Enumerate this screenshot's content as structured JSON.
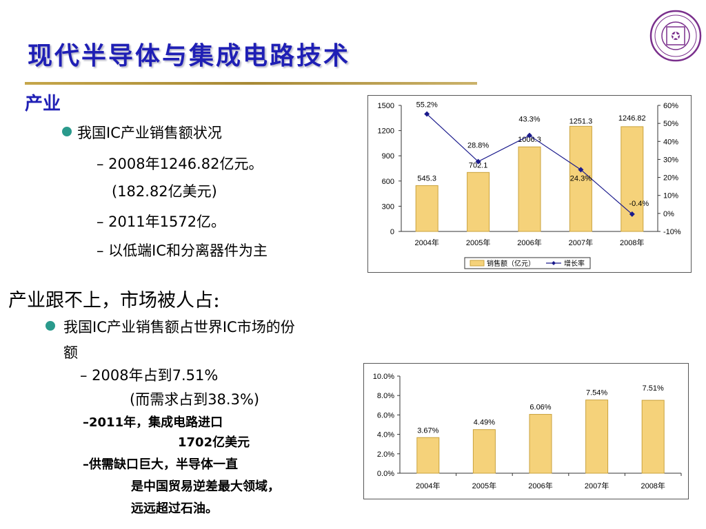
{
  "slide": {
    "title": "现代半导体与集成电路技术",
    "section": "产业",
    "bullet1": "我国IC产业销售额状况",
    "b1_sub1": "– 2008年1246.82亿元。",
    "b1_sub1b": "(182.82亿美元)",
    "b1_sub2": "– 2011年1572亿。",
    "b1_sub3": "– 以低端IC和分离器件为主",
    "heading2": "产业跟不上，市场被人占",
    "heading2_colon": "：",
    "bullet2_line1": "我国IC产业销售额占世界IC市场的份",
    "bullet2_line2": "额",
    "b2_sub1": "– 2008年占到7.51%",
    "b2_sub1b": "(而需求占到38.3%)",
    "b2_sub2": "–2011年，集成电路进口",
    "b2_sub2b": "1702亿美元",
    "b2_sub3": "–供需缺口巨大，半导体一直",
    "b2_sub3b": "是中国贸易逆差最大领域，",
    "b2_sub3c": "远远超过石油。"
  },
  "colors": {
    "title": "#1f1fb5",
    "bullet": "#2a9a8c",
    "bar_fill": "#f5d27a",
    "bar_edge": "#c9a23c",
    "line": "#1a1a8c",
    "logo": "#7a2f8c"
  },
  "chart_data": [
    {
      "type": "bar",
      "categories": [
        "2004年",
        "2005年",
        "2006年",
        "2007年",
        "2008年"
      ],
      "values": [
        545.3,
        702.1,
        1006.3,
        1251.3,
        1246.82
      ],
      "value_labels": [
        "545.3",
        "702.1",
        "1006.3",
        "1251.3",
        "1246.82"
      ],
      "ylim": [
        0,
        1500
      ],
      "yticks": [
        "0",
        "300",
        "600",
        "900",
        "1200",
        "1500"
      ],
      "series": [
        {
          "name": "销售额（亿元）",
          "kind": "bar",
          "values": [
            545.3,
            702.1,
            1006.3,
            1251.3,
            1246.82
          ]
        },
        {
          "name": "增长率",
          "kind": "line",
          "axis": "right",
          "values": [
            55.2,
            28.8,
            43.3,
            24.3,
            -0.4
          ],
          "labels": [
            "55.2%",
            "28.8%",
            "43.3%",
            "24.3%",
            "-0.4%"
          ]
        }
      ],
      "y2lim": [
        -10,
        60
      ],
      "y2ticks": [
        "-10%",
        "0%",
        "10%",
        "20%",
        "30%",
        "40%",
        "50%",
        "60%"
      ],
      "legend": "bottom"
    },
    {
      "type": "bar",
      "categories": [
        "2004年",
        "2005年",
        "2006年",
        "2007年",
        "2008年"
      ],
      "values": [
        3.67,
        4.49,
        6.06,
        7.54,
        7.51
      ],
      "value_labels": [
        "3.67%",
        "4.49%",
        "6.06%",
        "7.54%",
        "7.51%"
      ],
      "ylim": [
        0,
        10
      ],
      "yticks": [
        "0.0%",
        "2.0%",
        "4.0%",
        "6.0%",
        "8.0%",
        "10.0%"
      ]
    }
  ]
}
